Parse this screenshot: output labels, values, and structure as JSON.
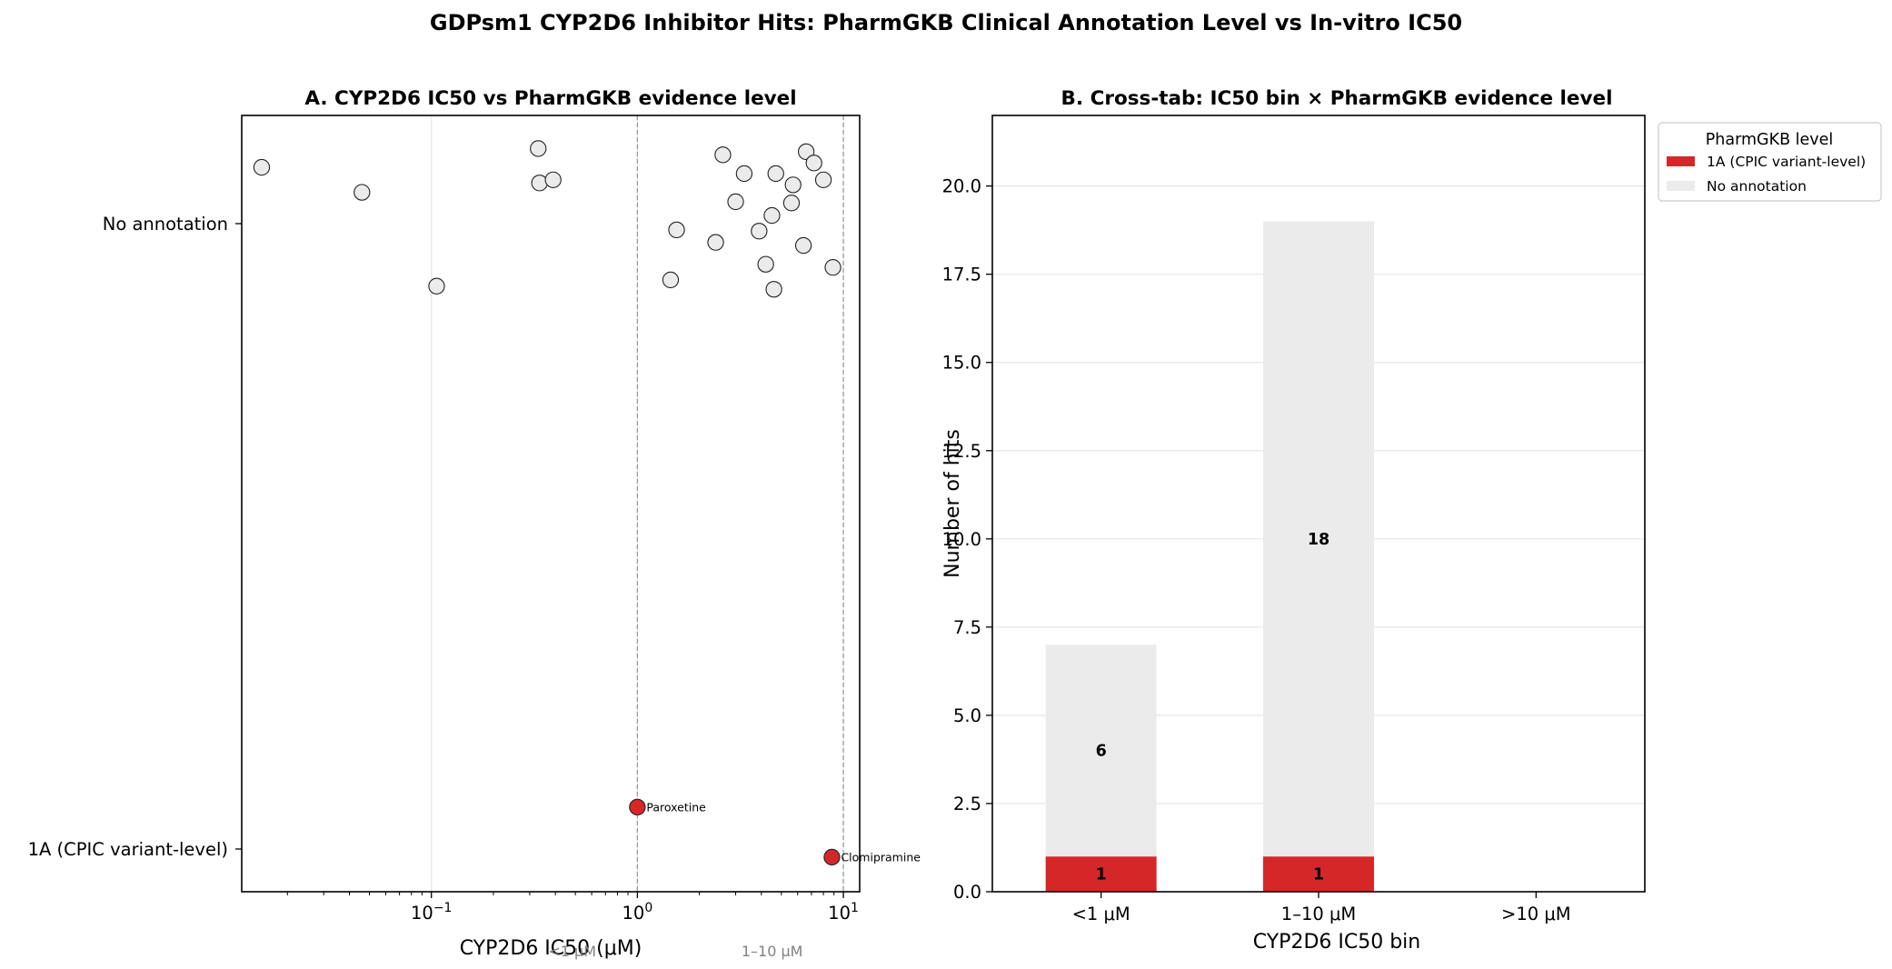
{
  "figure": {
    "title": "GDPsm1 CYP2D6 Inhibitor Hits: PharmGKB Clinical Annotation Level vs In-vitro IC50"
  },
  "chart_data": [
    {
      "type": "scatter",
      "title": "A. CYP2D6 IC50 vs PharmGKB evidence level",
      "xlabel": "CYP2D6 IC50 (μM)",
      "ylabel": "",
      "xscale": "log",
      "xlim": [
        0.012,
        12
      ],
      "xticks": [
        {
          "value": 0.1,
          "base": "10",
          "exp": "−1"
        },
        {
          "value": 1,
          "base": "10",
          "exp": "0"
        },
        {
          "value": 10,
          "base": "10",
          "exp": "1"
        }
      ],
      "categories": [
        "No annotation",
        "1A (CPIC variant-level)"
      ],
      "reference_lines": [
        1,
        10
      ],
      "band_labels": [
        {
          "x": 1,
          "text": "<1 μM"
        },
        {
          "x": 3.2,
          "text": "1–10 μM"
        }
      ],
      "grid": "vertical",
      "series": [
        {
          "category": "No annotation",
          "color": "#ebebeb",
          "points": [
            {
              "x": 0.015,
              "y": 0.09
            },
            {
              "x": 0.046,
              "y": 0.05
            },
            {
              "x": 0.106,
              "y": -0.1
            },
            {
              "x": 0.33,
              "y": 0.12
            },
            {
              "x": 0.335,
              "y": 0.065
            },
            {
              "x": 0.39,
              "y": 0.07
            },
            {
              "x": 1.45,
              "y": -0.09
            },
            {
              "x": 1.55,
              "y": -0.01
            },
            {
              "x": 2.4,
              "y": -0.03
            },
            {
              "x": 2.6,
              "y": 0.11
            },
            {
              "x": 3.0,
              "y": 0.035
            },
            {
              "x": 3.3,
              "y": 0.08
            },
            {
              "x": 3.9,
              "y": -0.012
            },
            {
              "x": 4.2,
              "y": -0.065
            },
            {
              "x": 4.5,
              "y": 0.013
            },
            {
              "x": 4.6,
              "y": -0.105
            },
            {
              "x": 4.7,
              "y": 0.08
            },
            {
              "x": 5.6,
              "y": 0.033
            },
            {
              "x": 5.7,
              "y": 0.062
            },
            {
              "x": 6.4,
              "y": -0.035
            },
            {
              "x": 6.6,
              "y": 0.115
            },
            {
              "x": 7.2,
              "y": 0.097
            },
            {
              "x": 8.0,
              "y": 0.07
            },
            {
              "x": 8.9,
              "y": -0.07
            }
          ]
        },
        {
          "category": "1A (CPIC variant-level)",
          "color": "#d62728",
          "points": [
            {
              "x": 1.0,
              "y": 1.0,
              "label": "Paroxetine",
              "jitter": 0.067
            },
            {
              "x": 8.8,
              "y": 1.0,
              "label": "Clomipramine",
              "jitter": -0.013
            }
          ]
        }
      ]
    },
    {
      "type": "bar",
      "stacked": true,
      "title": "B. Cross-tab: IC50 bin × PharmGKB evidence level",
      "xlabel": "CYP2D6 IC50 bin",
      "ylabel": "Number of hits",
      "categories": [
        "<1 μM",
        "1–10 μM",
        ">10 μM"
      ],
      "ylim": [
        0,
        22
      ],
      "yticks": [
        "0.0",
        "2.5",
        "5.0",
        "7.5",
        "10.0",
        "12.5",
        "15.0",
        "17.5",
        "20.0"
      ],
      "grid": "horizontal",
      "legend": {
        "title": "PharmGKB level",
        "placement": "outside-top-right"
      },
      "series": [
        {
          "name": "1A (CPIC variant-level)",
          "color": "#d62728",
          "values": [
            1,
            1,
            0
          ]
        },
        {
          "name": "No annotation",
          "color": "#ebebeb",
          "values": [
            6,
            18,
            0
          ]
        }
      ]
    }
  ]
}
